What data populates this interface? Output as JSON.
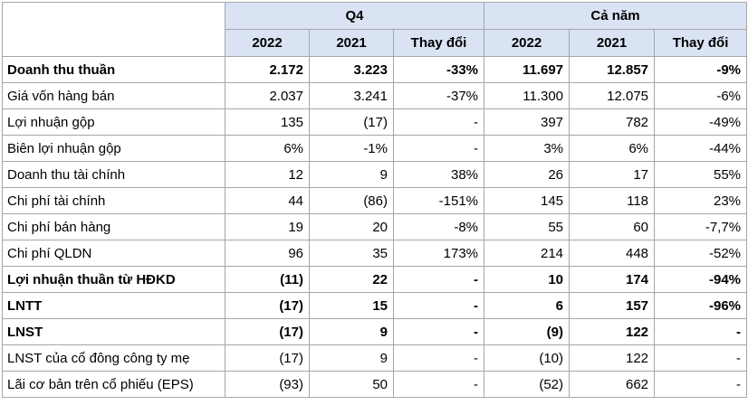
{
  "header": {
    "group_q4": "Q4",
    "group_year": "Cả năm",
    "columns": [
      "2022",
      "2021",
      "Thay đổi",
      "2022",
      "2021",
      "Thay đổi"
    ]
  },
  "rows": [
    {
      "label": "Doanh thu thuần",
      "bold": true,
      "values": [
        "2.172",
        "3.223",
        "-33%",
        "11.697",
        "12.857",
        "-9%"
      ]
    },
    {
      "label": "Giá vốn hàng bán",
      "bold": false,
      "values": [
        "2.037",
        "3.241",
        "-37%",
        "11.300",
        "12.075",
        "-6%"
      ]
    },
    {
      "label": "Lợi nhuận gộp",
      "bold": false,
      "values": [
        "135",
        "(17)",
        "-",
        "397",
        "782",
        "-49%"
      ]
    },
    {
      "label": "Biên lợi nhuận gộp",
      "bold": false,
      "values": [
        "6%",
        "-1%",
        "-",
        "3%",
        "6%",
        "-44%"
      ]
    },
    {
      "label": "Doanh thu tài chính",
      "bold": false,
      "values": [
        "12",
        "9",
        "38%",
        "26",
        "17",
        "55%"
      ]
    },
    {
      "label": "Chi phí tài chính",
      "bold": false,
      "values": [
        "44",
        "(86)",
        "-151%",
        "145",
        "118",
        "23%"
      ]
    },
    {
      "label": "Chi phí bán hàng",
      "bold": false,
      "values": [
        "19",
        "20",
        "-8%",
        "55",
        "60",
        "-7,7%"
      ]
    },
    {
      "label": "Chi phí QLDN",
      "bold": false,
      "values": [
        "96",
        "35",
        "173%",
        "214",
        "448",
        "-52%"
      ]
    },
    {
      "label": "Lợi nhuận thuần từ HĐKD",
      "bold": true,
      "values": [
        "(11)",
        "22",
        "-",
        "10",
        "174",
        "-94%"
      ]
    },
    {
      "label": "LNTT",
      "bold": true,
      "values": [
        "(17)",
        "15",
        "-",
        "6",
        "157",
        "-96%"
      ]
    },
    {
      "label": "LNST",
      "bold": true,
      "values": [
        "(17)",
        "9",
        "-",
        "(9)",
        "122",
        "-"
      ]
    },
    {
      "label": "LNST của cổ đông công ty mẹ",
      "bold": false,
      "values": [
        "(17)",
        "9",
        "-",
        "(10)",
        "122",
        "-"
      ]
    },
    {
      "label": "Lãi cơ bản trên cổ phiếu (EPS)",
      "bold": false,
      "values": [
        "(93)",
        "50",
        "-",
        "(52)",
        "662",
        "-"
      ]
    }
  ]
}
